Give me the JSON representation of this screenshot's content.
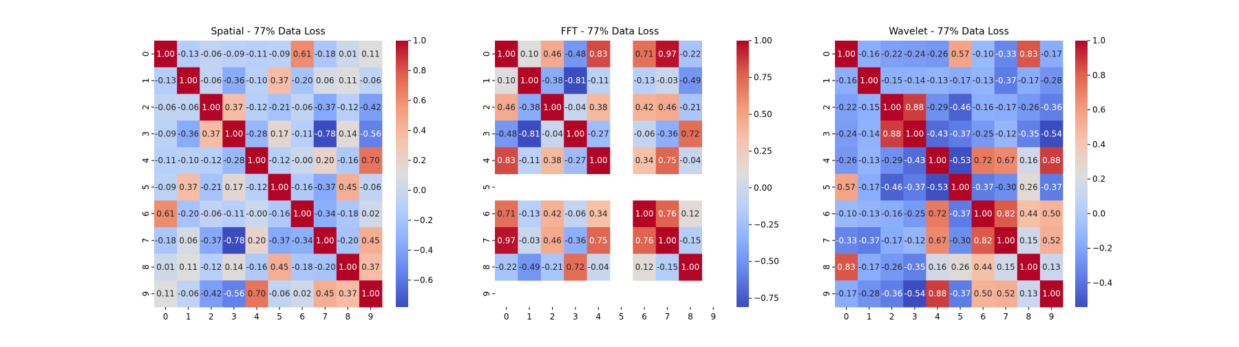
{
  "chart_data": [
    {
      "type": "heatmap",
      "title": "Spatial - 77% Data Loss",
      "labels": [
        "0",
        "1",
        "2",
        "3",
        "4",
        "5",
        "6",
        "7",
        "8",
        "9"
      ],
      "colorbar": {
        "vmin": -0.78,
        "vmax": 1.0,
        "ticks": [
          -0.6,
          -0.4,
          -0.2,
          0.0,
          0.2,
          0.4,
          0.6,
          0.8,
          1.0
        ],
        "tick_labels": [
          "−0.6",
          "−0.4",
          "−0.2",
          "0.0",
          "0.2",
          "0.4",
          "0.6",
          "0.8",
          "1.0"
        ]
      },
      "matrix": [
        [
          1.0,
          -0.13,
          -0.06,
          -0.09,
          -0.11,
          -0.09,
          0.61,
          -0.18,
          0.01,
          0.11
        ],
        [
          -0.13,
          1.0,
          -0.06,
          -0.36,
          -0.1,
          0.37,
          -0.2,
          0.06,
          0.11,
          -0.06
        ],
        [
          -0.06,
          -0.06,
          1.0,
          0.37,
          -0.12,
          -0.21,
          -0.06,
          -0.37,
          -0.12,
          -0.42
        ],
        [
          -0.09,
          -0.36,
          0.37,
          1.0,
          -0.28,
          0.17,
          -0.11,
          -0.78,
          0.14,
          -0.56
        ],
        [
          -0.11,
          -0.1,
          -0.12,
          -0.28,
          1.0,
          -0.12,
          -0.0,
          0.2,
          -0.16,
          0.7
        ],
        [
          -0.09,
          0.37,
          -0.21,
          0.17,
          -0.12,
          1.0,
          -0.16,
          -0.37,
          0.45,
          -0.06
        ],
        [
          0.61,
          -0.2,
          -0.06,
          -0.11,
          -0.0,
          -0.16,
          1.0,
          -0.34,
          -0.18,
          0.02
        ],
        [
          -0.18,
          0.06,
          -0.37,
          -0.78,
          0.2,
          -0.37,
          -0.34,
          1.0,
          -0.2,
          0.45
        ],
        [
          0.01,
          0.11,
          -0.12,
          0.14,
          -0.16,
          0.45,
          -0.18,
          -0.2,
          1.0,
          0.37
        ],
        [
          0.11,
          -0.06,
          -0.42,
          -0.56,
          0.7,
          -0.06,
          0.02,
          0.45,
          0.37,
          1.0
        ]
      ]
    },
    {
      "type": "heatmap",
      "title": "FFT - 77% Data Loss",
      "labels": [
        "0",
        "1",
        "2",
        "3",
        "4",
        "5",
        "6",
        "7",
        "8",
        "9"
      ],
      "colorbar": {
        "vmin": -0.81,
        "vmax": 1.0,
        "ticks": [
          -0.75,
          -0.5,
          -0.25,
          0.0,
          0.25,
          0.5,
          0.75,
          1.0
        ],
        "tick_labels": [
          "−0.75",
          "−0.50",
          "−0.25",
          "0.00",
          "0.25",
          "0.50",
          "0.75",
          "1.00"
        ]
      },
      "matrix": [
        [
          1.0,
          0.1,
          0.46,
          -0.48,
          0.83,
          null,
          0.71,
          0.97,
          -0.22,
          null
        ],
        [
          0.1,
          1.0,
          -0.38,
          -0.81,
          -0.11,
          null,
          -0.13,
          -0.03,
          -0.49,
          null
        ],
        [
          0.46,
          -0.38,
          1.0,
          -0.04,
          0.38,
          null,
          0.42,
          0.46,
          -0.21,
          null
        ],
        [
          -0.48,
          -0.81,
          -0.04,
          1.0,
          -0.27,
          null,
          -0.06,
          -0.36,
          0.72,
          null
        ],
        [
          0.83,
          -0.11,
          0.38,
          -0.27,
          1.0,
          null,
          0.34,
          0.75,
          -0.04,
          null
        ],
        [
          null,
          null,
          null,
          null,
          null,
          null,
          null,
          null,
          null,
          null
        ],
        [
          0.71,
          -0.13,
          0.42,
          -0.06,
          0.34,
          null,
          1.0,
          0.76,
          0.12,
          null
        ],
        [
          0.97,
          -0.03,
          0.46,
          -0.36,
          0.75,
          null,
          0.76,
          1.0,
          -0.15,
          null
        ],
        [
          -0.22,
          -0.49,
          -0.21,
          0.72,
          -0.04,
          null,
          0.12,
          -0.15,
          1.0,
          null
        ],
        [
          null,
          null,
          null,
          null,
          null,
          null,
          null,
          null,
          null,
          null
        ]
      ]
    },
    {
      "type": "heatmap",
      "title": "Wavelet - 77% Data Loss",
      "labels": [
        "0",
        "1",
        "2",
        "3",
        "4",
        "5",
        "6",
        "7",
        "8",
        "9"
      ],
      "colorbar": {
        "vmin": -0.54,
        "vmax": 1.0,
        "ticks": [
          -0.4,
          -0.2,
          0.0,
          0.2,
          0.4,
          0.6,
          0.8,
          1.0
        ],
        "tick_labels": [
          "−0.4",
          "−0.2",
          "0.0",
          "0.2",
          "0.4",
          "0.6",
          "0.8",
          "1.0"
        ]
      },
      "matrix": [
        [
          1.0,
          -0.16,
          -0.22,
          -0.24,
          -0.26,
          0.57,
          -0.1,
          -0.33,
          0.83,
          -0.17
        ],
        [
          -0.16,
          1.0,
          -0.15,
          -0.14,
          -0.13,
          -0.17,
          -0.13,
          -0.37,
          -0.17,
          -0.28
        ],
        [
          -0.22,
          -0.15,
          1.0,
          0.88,
          -0.29,
          -0.46,
          -0.16,
          -0.17,
          -0.26,
          -0.36
        ],
        [
          -0.24,
          -0.14,
          0.88,
          1.0,
          -0.43,
          -0.37,
          -0.25,
          -0.12,
          -0.35,
          -0.54
        ],
        [
          -0.26,
          -0.13,
          -0.29,
          -0.43,
          1.0,
          -0.53,
          0.72,
          0.67,
          0.16,
          0.88
        ],
        [
          0.57,
          -0.17,
          -0.46,
          -0.37,
          -0.53,
          1.0,
          -0.37,
          -0.3,
          0.26,
          -0.37
        ],
        [
          -0.1,
          -0.13,
          -0.16,
          -0.25,
          0.72,
          -0.37,
          1.0,
          0.82,
          0.44,
          0.5
        ],
        [
          -0.33,
          -0.37,
          -0.17,
          -0.12,
          0.67,
          -0.3,
          0.82,
          1.0,
          0.15,
          0.52
        ],
        [
          0.83,
          -0.17,
          -0.26,
          -0.35,
          0.16,
          0.26,
          0.44,
          0.15,
          1.0,
          0.13
        ],
        [
          -0.17,
          -0.28,
          -0.36,
          -0.54,
          0.88,
          -0.37,
          0.5,
          0.52,
          0.13,
          1.0
        ]
      ]
    }
  ]
}
